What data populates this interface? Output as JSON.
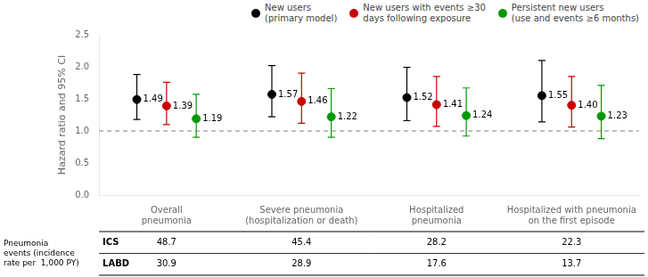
{
  "chart_data": {
    "type": "scatter",
    "categories": [
      "Overall\npneumonia",
      "Severe pneumonia\n(hospitalization or death)",
      "Hospitalized\npneumonia",
      "Hospitalized with pneumonia\non the first episode"
    ],
    "series": [
      {
        "name": "New users\n(primary model)",
        "color": "#000000",
        "values": [
          1.49,
          1.57,
          1.52,
          1.55
        ],
        "value_labels": [
          "1.49",
          "1.57",
          "1.52",
          "1.55"
        ],
        "ci_low": [
          1.18,
          1.22,
          1.16,
          1.14
        ],
        "ci_high": [
          1.88,
          2.02,
          1.99,
          2.1
        ]
      },
      {
        "name": "New users with events ≥30\ndays following exposure",
        "color": "#cc0000",
        "values": [
          1.39,
          1.46,
          1.41,
          1.4
        ],
        "value_labels": [
          "1.39",
          "1.46",
          "1.41",
          "1.40"
        ],
        "ci_low": [
          1.1,
          1.12,
          1.07,
          1.06
        ],
        "ci_high": [
          1.76,
          1.9,
          1.85,
          1.85
        ]
      },
      {
        "name": "Persistent new users\n(use and events ≥6 months)",
        "color": "#009900",
        "values": [
          1.19,
          1.22,
          1.24,
          1.23
        ],
        "value_labels": [
          "1.19",
          "1.22",
          "1.24",
          "1.23"
        ],
        "ci_low": [
          0.9,
          0.9,
          0.92,
          0.88
        ],
        "ci_high": [
          1.57,
          1.66,
          1.67,
          1.71
        ]
      }
    ],
    "ylabel": "Hazard ratio and 95% CI",
    "ylim": [
      0,
      2.5
    ],
    "yticks": [
      {
        "value": 0,
        "label": "0.0"
      },
      0.5,
      {
        "value": 1,
        "label": "1.0"
      },
      1.5,
      {
        "value": 2,
        "label": "2.0"
      },
      2.5
    ],
    "reference_line": 1.0,
    "data_labels": true,
    "grid": false,
    "legend": "upper right",
    "marker": "circle",
    "table": {
      "title": "Pneumonia\nevents (incidence\nrate per  1,000 PY)",
      "rows": [
        {
          "label": "ICS",
          "values": [
            48.7,
            45.4,
            28.2,
            22.3
          ]
        },
        {
          "label": "LABD",
          "values": [
            30.9,
            28.9,
            17.6,
            13.7
          ]
        }
      ]
    }
  }
}
